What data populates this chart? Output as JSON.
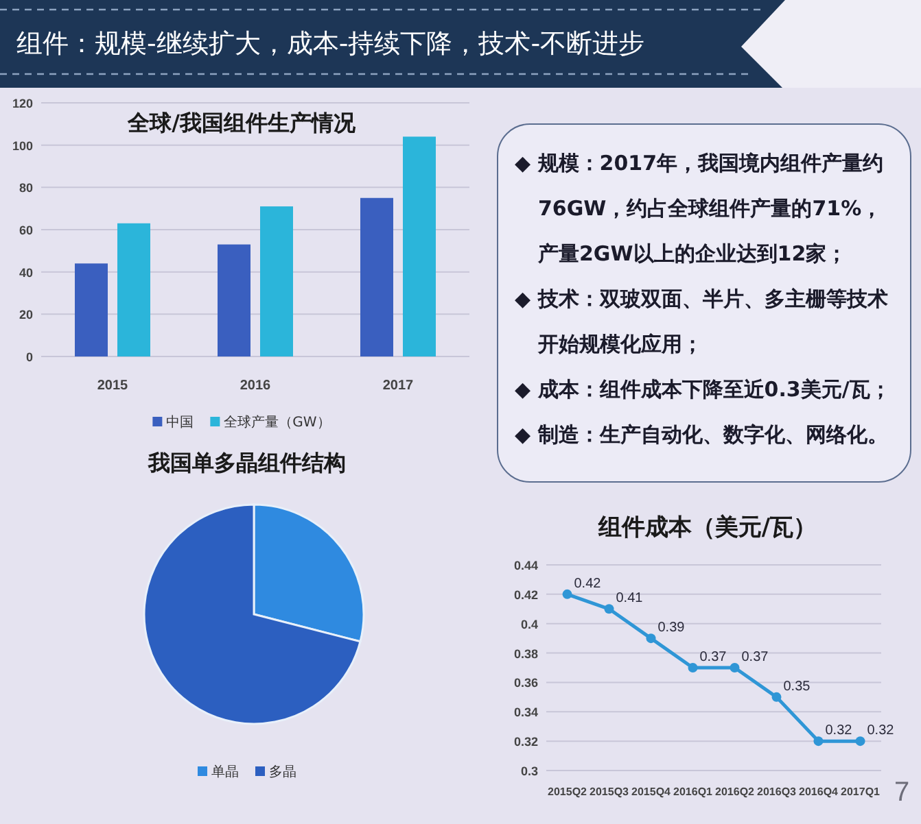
{
  "chart_data": [
    {
      "type": "other",
      "title": "组件：规模-继续扩大，成本-持续下降，技术-不断进步"
    },
    {
      "type": "bar",
      "title": "全球/我国组件生产情况",
      "categories": [
        "2015",
        "2016",
        "2017"
      ],
      "series": [
        {
          "name": "中国",
          "color": "#3a5fbf",
          "values": [
            44,
            53,
            75
          ]
        },
        {
          "name": "全球产量（GW）",
          "color": "#2bb5da",
          "values": [
            63,
            71,
            104
          ]
        }
      ],
      "ylim": [
        0,
        120
      ],
      "yticks": [
        0,
        20,
        40,
        60,
        80,
        100,
        120
      ],
      "grid": "y",
      "legend": "bottom"
    },
    {
      "type": "other",
      "annotations": [
        "◆ 规模：2017年，我国境内组件产量约76GW，约占全球组件产量的71%，产量2GW以上的企业达到12家；",
        "◆ 技术：双玻双面、半片、多主栅等技术开始规模化应用；",
        "◆ 成本：组件成本下降至近0.3美元/瓦；",
        "◆ 制造：生产自动化、数字化、网络化。"
      ]
    },
    {
      "type": "pie",
      "title": "我国单多晶组件结构",
      "categories": [
        "单晶",
        "多晶"
      ],
      "values": [
        29,
        71
      ],
      "colors": [
        "#2f8ae0",
        "#2c5fc0"
      ],
      "legend": "bottom"
    },
    {
      "type": "line",
      "title": "组件成本（美元/瓦）",
      "categories": [
        "2015Q2",
        "2015Q3",
        "2015Q4",
        "2016Q1",
        "2016Q2",
        "2016Q3",
        "2016Q4",
        "2017Q1"
      ],
      "values": [
        0.42,
        0.41,
        0.39,
        0.37,
        0.37,
        0.35,
        0.32,
        0.32
      ],
      "color": "#2f96d6",
      "ylim": [
        0.3,
        0.44
      ],
      "yticks": [
        0.3,
        0.32,
        0.34,
        0.36,
        0.38,
        0.4,
        0.42,
        0.44
      ],
      "grid": "y",
      "marker": "circle",
      "data_labels": true,
      "annotations": [
        "7"
      ]
    }
  ]
}
